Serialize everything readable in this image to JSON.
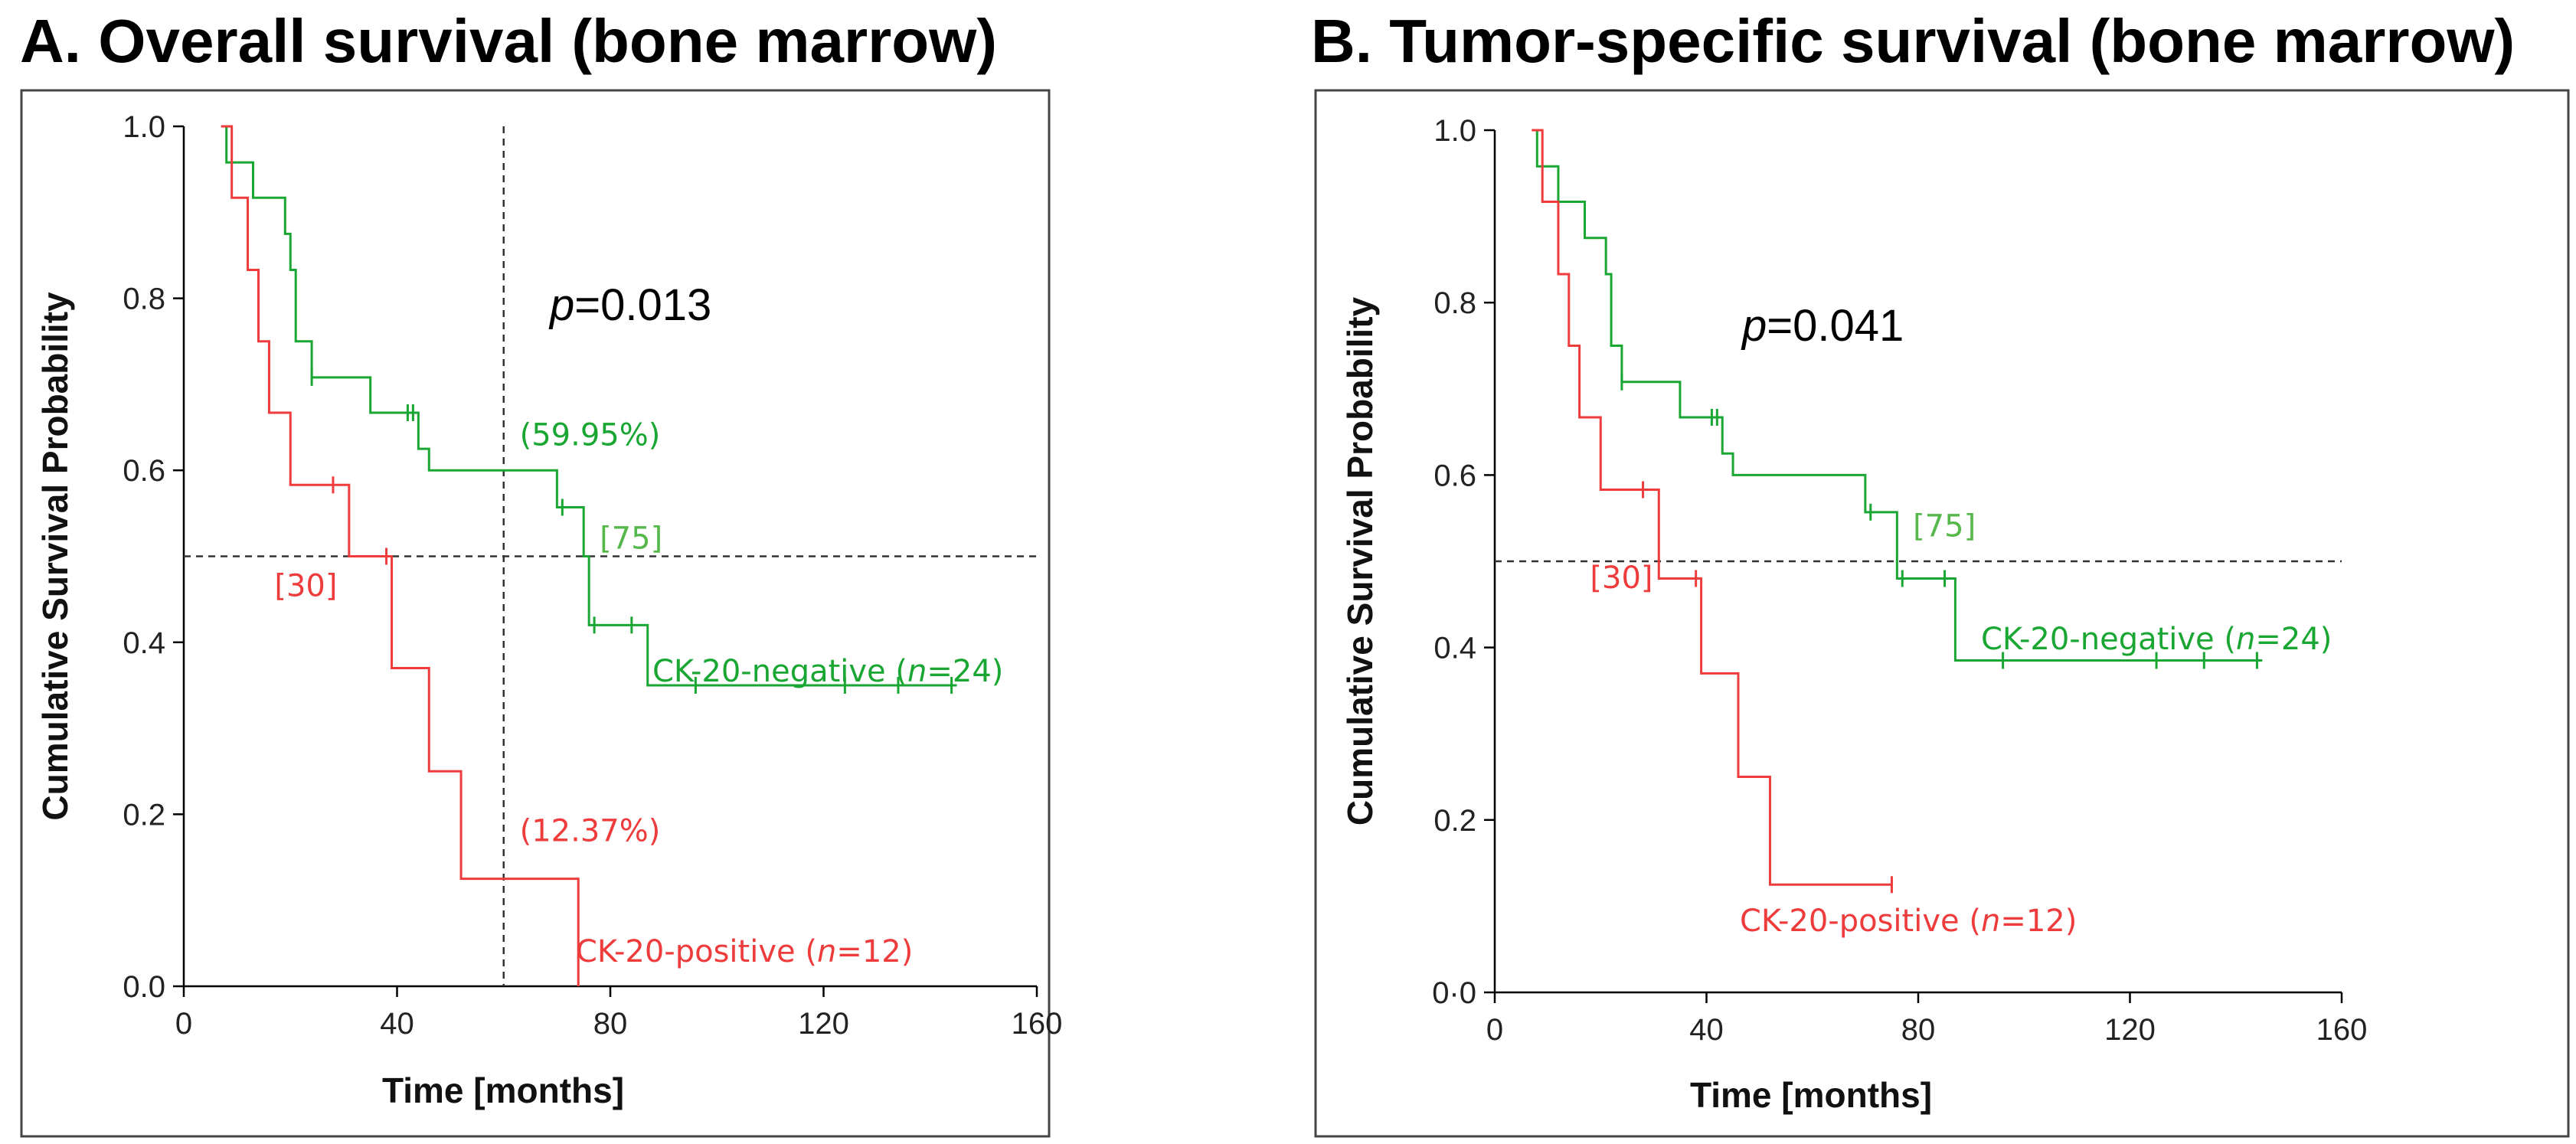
{
  "colors": {
    "positive": "#ee3b3b",
    "negative": "#1aa632",
    "negative_light": "#56b84a",
    "frame": "#444444",
    "ref": "#333333"
  },
  "chart_data": [
    {
      "type": "line",
      "title": "A. Overall survival (bone marrow)",
      "xlabel": "Time [months]",
      "ylabel": "Cumulative Survival Probability",
      "xlim": [
        0,
        160
      ],
      "ylim": [
        0,
        1
      ],
      "xticks": [
        "0",
        "40",
        "80",
        "120",
        "160"
      ],
      "yticks": [
        "0.0",
        "0.2",
        "0.4",
        "0.6",
        "0.8",
        "1.0"
      ],
      "p_prefix": "p",
      "p_value": "=0.013",
      "ref_y": 0.5,
      "ref_x": 60,
      "series": [
        {
          "name": "CK-20-negative",
          "label_prefix": "CK-20-negative (",
          "label_n": "n",
          "label_suffix": "=24)",
          "color_key": "negative",
          "steps": [
            [
              7,
              1.0
            ],
            [
              8,
              0.958
            ],
            [
              13,
              0.917
            ],
            [
              19,
              0.875
            ],
            [
              20,
              0.833
            ],
            [
              21,
              0.75
            ],
            [
              24,
              0.708
            ],
            [
              35,
              0.667
            ],
            [
              44,
              0.625
            ],
            [
              46,
              0.6
            ],
            [
              70,
              0.557
            ],
            [
              75,
              0.5
            ],
            [
              76,
              0.42
            ],
            [
              87,
              0.35
            ]
          ],
          "end_x": 145,
          "censors": [
            [
              24,
              0.708
            ],
            [
              42,
              0.667
            ],
            [
              43,
              0.667
            ],
            [
              71,
              0.557
            ],
            [
              77,
              0.42
            ],
            [
              84,
              0.42
            ],
            [
              96,
              0.35
            ],
            [
              124,
              0.35
            ],
            [
              134,
              0.35
            ],
            [
              144,
              0.35
            ]
          ],
          "annotations": [
            {
              "text": "(59.95%)",
              "x": 63,
              "y": 0.62
            },
            {
              "text": "[75]",
              "x": 78,
              "y": 0.5,
              "light": true
            }
          ]
        },
        {
          "name": "CK-20-positive",
          "label_prefix": "CK-20-positive (",
          "label_n": "n",
          "label_suffix": "=12)",
          "color_key": "positive",
          "steps": [
            [
              7,
              1.0
            ],
            [
              9,
              0.917
            ],
            [
              12,
              0.833
            ],
            [
              14,
              0.75
            ],
            [
              16,
              0.667
            ],
            [
              20,
              0.583
            ],
            [
              31,
              0.5
            ],
            [
              39,
              0.37
            ],
            [
              46,
              0.25
            ],
            [
              52,
              0.125
            ],
            [
              74,
              0.0
            ]
          ],
          "end_x": 74,
          "censors": [
            [
              28,
              0.583
            ],
            [
              38,
              0.5
            ]
          ],
          "annotations": [
            {
              "text": "[30]",
              "x": 17,
              "y": 0.445
            },
            {
              "text": "(12.37%)",
              "x": 63,
              "y": 0.16
            }
          ]
        }
      ]
    },
    {
      "type": "line",
      "title": "B. Tumor-specific survival (bone marrow)",
      "xlabel": "Time [months]",
      "ylabel": "Cumulative Survival Probability",
      "xlim": [
        0,
        160
      ],
      "ylim": [
        0,
        1
      ],
      "xticks": [
        "0",
        "40",
        "80",
        "120",
        "160"
      ],
      "yticks": [
        "0·0",
        "0.2",
        "0.4",
        "0.6",
        "0.8",
        "1.0"
      ],
      "p_prefix": "p",
      "p_value": "=0.041",
      "ref_y": 0.5,
      "series": [
        {
          "name": "CK-20-negative",
          "label_prefix": "CK-20-negative (",
          "label_n": "n",
          "label_suffix": "=24)",
          "color_key": "negative",
          "steps": [
            [
              7,
              1.0
            ],
            [
              8,
              0.958
            ],
            [
              12,
              0.917
            ],
            [
              17,
              0.875
            ],
            [
              21,
              0.833
            ],
            [
              22,
              0.75
            ],
            [
              24,
              0.708
            ],
            [
              35,
              0.667
            ],
            [
              43,
              0.625
            ],
            [
              45,
              0.6
            ],
            [
              70,
              0.557
            ],
            [
              76,
              0.48
            ],
            [
              87,
              0.385
            ]
          ],
          "end_x": 145,
          "censors": [
            [
              24,
              0.708
            ],
            [
              41,
              0.667
            ],
            [
              42,
              0.667
            ],
            [
              71,
              0.557
            ],
            [
              77,
              0.48
            ],
            [
              85,
              0.48
            ],
            [
              96,
              0.385
            ],
            [
              125,
              0.385
            ],
            [
              134,
              0.385
            ],
            [
              144,
              0.385
            ]
          ],
          "annotations": [
            {
              "text": "[75]",
              "x": 79,
              "y": 0.52,
              "light": true
            }
          ]
        },
        {
          "name": "CK-20-positive",
          "label_prefix": "CK-20-positive (",
          "label_n": "n",
          "label_suffix": "=12)",
          "color_key": "positive",
          "steps": [
            [
              7,
              1.0
            ],
            [
              9,
              0.917
            ],
            [
              12,
              0.833
            ],
            [
              14,
              0.75
            ],
            [
              16,
              0.667
            ],
            [
              20,
              0.583
            ],
            [
              31,
              0.48
            ],
            [
              39,
              0.37
            ],
            [
              46,
              0.25
            ],
            [
              52,
              0.125
            ]
          ],
          "end_x": 75,
          "censors": [
            [
              28,
              0.583
            ],
            [
              38,
              0.48
            ],
            [
              75,
              0.125
            ]
          ],
          "annotations": [
            {
              "text": "[30]",
              "x": 18,
              "y": 0.46
            }
          ]
        }
      ]
    }
  ]
}
